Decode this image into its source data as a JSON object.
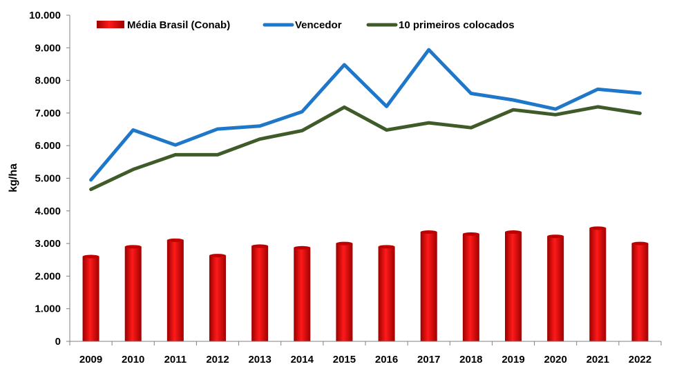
{
  "chart_data": {
    "type": "bar+line",
    "ylabel": "kg/ha",
    "xlabel": "",
    "ylim": [
      0,
      10000
    ],
    "yticks": [
      0,
      1000,
      2000,
      3000,
      4000,
      5000,
      6000,
      7000,
      8000,
      9000,
      10000
    ],
    "ytick_labels": [
      "0",
      "1.000",
      "2.000",
      "3.000",
      "4.000",
      "5.000",
      "6.000",
      "7.000",
      "8.000",
      "9.000",
      "10.000"
    ],
    "categories": [
      "2009",
      "2010",
      "2011",
      "2012",
      "2013",
      "2014",
      "2015",
      "2016",
      "2017",
      "2018",
      "2019",
      "2020",
      "2021",
      "2022"
    ],
    "series": [
      {
        "name": "Média Brasil (Conab)",
        "type": "bar",
        "color": "#e00000",
        "values": [
          2600,
          2900,
          3100,
          2630,
          2920,
          2870,
          3000,
          2900,
          3350,
          3290,
          3350,
          3220,
          3470,
          3000
        ]
      },
      {
        "name": "Vencedor",
        "type": "line",
        "color": "#1f77c9",
        "values": [
          4950,
          6480,
          6020,
          6510,
          6600,
          7040,
          8480,
          7200,
          8940,
          7600,
          7400,
          7120,
          7730,
          7610
        ]
      },
      {
        "name": "10 primeiros colocados",
        "type": "line",
        "color": "#3f5b2a",
        "values": [
          4660,
          5270,
          5720,
          5720,
          6200,
          6460,
          7180,
          6480,
          6700,
          6550,
          7100,
          6950,
          7190,
          6990
        ]
      }
    ],
    "legend_position": "top",
    "grid": false
  }
}
